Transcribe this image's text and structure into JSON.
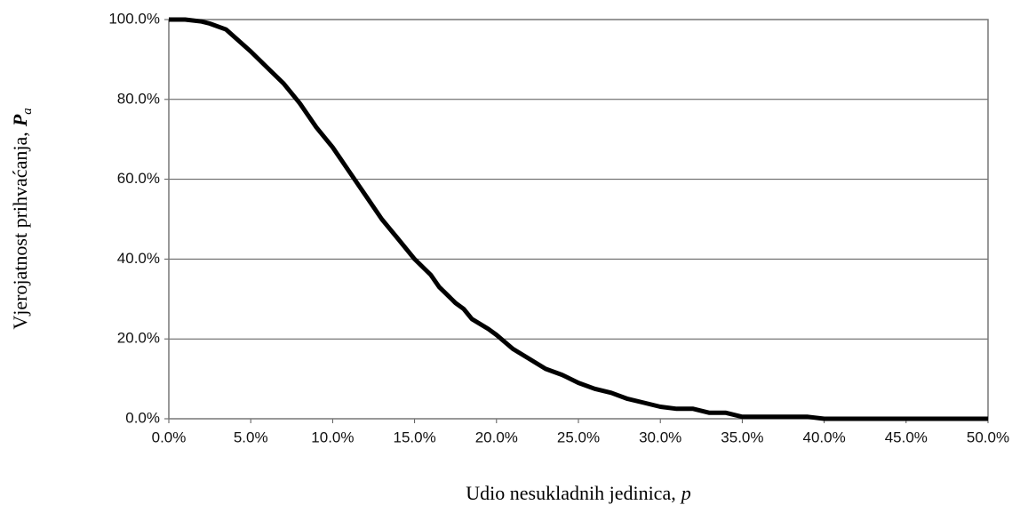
{
  "chart_data": {
    "type": "line",
    "x_label": "Udio nesukladnih jedinica,",
    "x_label_symbol": "p",
    "y_label": "Vjerojatnost prihvaćanja,",
    "y_label_symbol": "P",
    "y_label_subscript": "a",
    "x": [
      0,
      1,
      2,
      2.5,
      3.5,
      5,
      6,
      7,
      8,
      9,
      10,
      11,
      12,
      13,
      14,
      15,
      16,
      16.5,
      17.5,
      18,
      18.5,
      19.5,
      20,
      21,
      22,
      23,
      24,
      25,
      26,
      27,
      28,
      29,
      30,
      31,
      32,
      33,
      34,
      35,
      36,
      37,
      38,
      39,
      40,
      45,
      50
    ],
    "values": [
      100,
      100,
      99.5,
      99,
      97.5,
      92,
      88,
      84,
      79,
      73,
      68,
      62,
      56,
      50,
      45,
      40,
      36,
      33,
      29,
      27.5,
      25,
      22.5,
      21,
      17.5,
      15,
      12.5,
      11,
      9,
      7.5,
      6.5,
      5,
      4,
      3,
      2.5,
      2.5,
      1.5,
      1.5,
      0.5,
      0.5,
      0.5,
      0.5,
      0.5,
      0,
      0,
      0
    ],
    "color": "#000000",
    "xlim": [
      0,
      50
    ],
    "xticks": [
      {
        "value": 0,
        "label": "0.0%"
      },
      {
        "value": 5,
        "label": "5.0%"
      },
      {
        "value": 10,
        "label": "10.0%"
      },
      {
        "value": 15,
        "label": "15.0%"
      },
      {
        "value": 20,
        "label": "20.0%"
      },
      {
        "value": 25,
        "label": "25.0%"
      },
      {
        "value": 30,
        "label": "30.0%"
      },
      {
        "value": 35,
        "label": "35.0%"
      },
      {
        "value": 40,
        "label": "40.0%"
      },
      {
        "value": 45,
        "label": "45.0%"
      },
      {
        "value": 50,
        "label": "50.0%"
      }
    ],
    "ylim": [
      0,
      100
    ],
    "yticks": [
      {
        "value": 0,
        "label": "0.0%"
      },
      {
        "value": 20,
        "label": "20.0%"
      },
      {
        "value": 40,
        "label": "40.0%"
      },
      {
        "value": 60,
        "label": "60.0%"
      },
      {
        "value": 80,
        "label": "80.0%"
      },
      {
        "value": 100,
        "label": "100.0%"
      }
    ],
    "grid": true
  }
}
